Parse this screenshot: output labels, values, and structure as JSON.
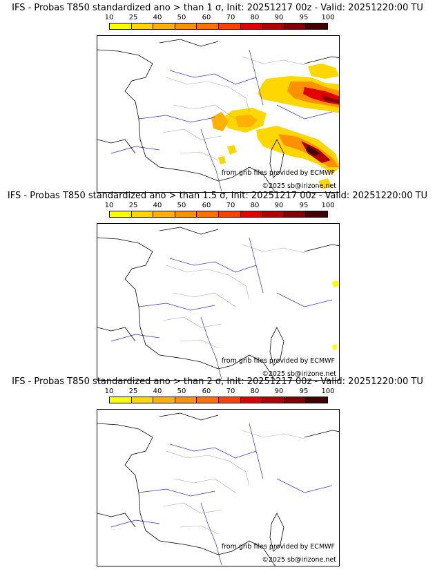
{
  "legend": {
    "values": [
      "10",
      "25",
      "40",
      "50",
      "60",
      "70",
      "80",
      "90",
      "95",
      "100"
    ],
    "colors": [
      "#ffff00",
      "#ffd700",
      "#ffb000",
      "#ff9000",
      "#ff7000",
      "#ff4000",
      "#e00000",
      "#b00000",
      "#800000",
      "#400000"
    ]
  },
  "credits": {
    "source": "from grib files provided by ECMWF",
    "copyright": "©2025 sb@irizone.net"
  },
  "panels": [
    {
      "title": "IFS - Probas T850  standardized ano > than 1 σ, Init: 20251217 00z - Valid: 20251220:00 TU"
    },
    {
      "title": "IFS - Probas T850  standardized ano > than 1.5 σ, Init: 20251217 00z - Valid: 20251220:00 TU"
    },
    {
      "title": "IFS - Probas T850  standardized ano > than 2 σ, Init: 20251217 00z - Valid: 20251220:00 TU"
    }
  ]
}
